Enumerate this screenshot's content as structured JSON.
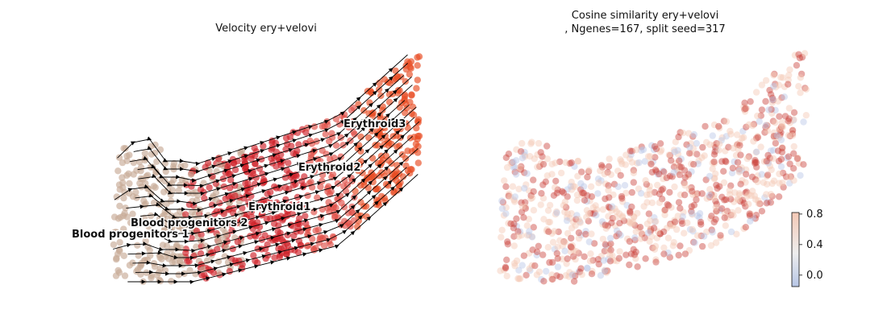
{
  "colors": {
    "blood_prog": "#c8ab97",
    "erythroid1": "#d0222a",
    "erythroid2": "#e05048",
    "erythroid3": "#e84c22",
    "cos_high": "#c9403a",
    "cos_mid": "#f3c7b3",
    "cos_low": "#b7c6e6"
  },
  "chart_data": [
    {
      "type": "scatter",
      "subtype": "velocity-stream-embedding",
      "title": "Velocity ery+velovi",
      "legend": "on-data cluster labels",
      "grid": false,
      "axes": "off",
      "clusters": [
        {
          "label": "Blood progenitors 1",
          "color": "#c8ab97"
        },
        {
          "label": "Blood progenitors 2",
          "color": "#c8ab97"
        },
        {
          "label": "Erythroid1",
          "color": "#d0222a"
        },
        {
          "label": "Erythroid2",
          "color": "#e05048"
        },
        {
          "label": "Erythroid3",
          "color": "#e84c22"
        }
      ]
    },
    {
      "type": "scatter",
      "subtype": "embedding-colored-by-value",
      "title_line1": "Cosine similarity ery+velovi",
      "title_line2": ", Ngenes=167, split seed=317",
      "grid": false,
      "axes": "off",
      "colormap": "coolwarm",
      "colorbar": {
        "ticks": [
          "0.8",
          "0.4",
          "0.0"
        ],
        "range": [
          -0.15,
          0.82
        ]
      }
    }
  ]
}
